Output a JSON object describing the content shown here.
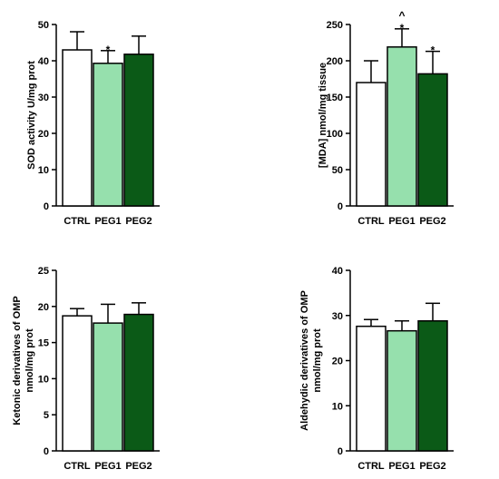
{
  "colors": {
    "ctrl_fill": "#ffffff",
    "peg1_fill": "#96e0ad",
    "peg2_fill": "#0b5a17",
    "axis": "#000000"
  },
  "chart_data": [
    {
      "type": "bar",
      "categories": [
        "CTRL",
        "PEG1",
        "PEG2"
      ],
      "values": [
        43,
        39.3,
        41.8
      ],
      "errors": [
        5,
        3.5,
        5
      ],
      "ylabel": "SOD activity U/mg prot",
      "ylim": [
        0,
        50
      ],
      "yticks": [
        0,
        10,
        20,
        30,
        40,
        50
      ],
      "annotations": [
        "",
        "*",
        ""
      ],
      "grid": false
    },
    {
      "type": "bar",
      "categories": [
        "CTRL",
        "PEG1",
        "PEG2"
      ],
      "values": [
        170,
        219,
        182
      ],
      "errors": [
        30,
        25,
        31
      ],
      "ylabel": "[MDA] nmol/mg tissue",
      "ylim": [
        0,
        250
      ],
      "yticks": [
        0,
        50,
        100,
        150,
        200,
        250
      ],
      "annotations": [
        "",
        "*\n^",
        "*"
      ],
      "grid": false
    },
    {
      "type": "bar",
      "categories": [
        "CTRL",
        "PEG1",
        "PEG2"
      ],
      "values": [
        18.7,
        17.7,
        18.9
      ],
      "errors": [
        1.0,
        2.6,
        1.6
      ],
      "ylabel": [
        "Ketonic derivatives of OMP",
        "nmol/mg prot"
      ],
      "ylim": [
        0,
        25
      ],
      "yticks": [
        0,
        5,
        10,
        15,
        20,
        25
      ],
      "annotations": [
        "",
        "",
        ""
      ],
      "grid": false
    },
    {
      "type": "bar",
      "categories": [
        "CTRL",
        "PEG1",
        "PEG2"
      ],
      "values": [
        27.6,
        26.6,
        28.8
      ],
      "errors": [
        1.5,
        2.2,
        3.9
      ],
      "ylabel": [
        "Aldehydic derivatives of OMP",
        "nmol/mg prot"
      ],
      "ylim": [
        0,
        40
      ],
      "yticks": [
        0,
        10,
        20,
        30,
        40
      ],
      "annotations": [
        "",
        "",
        ""
      ],
      "grid": false
    }
  ]
}
